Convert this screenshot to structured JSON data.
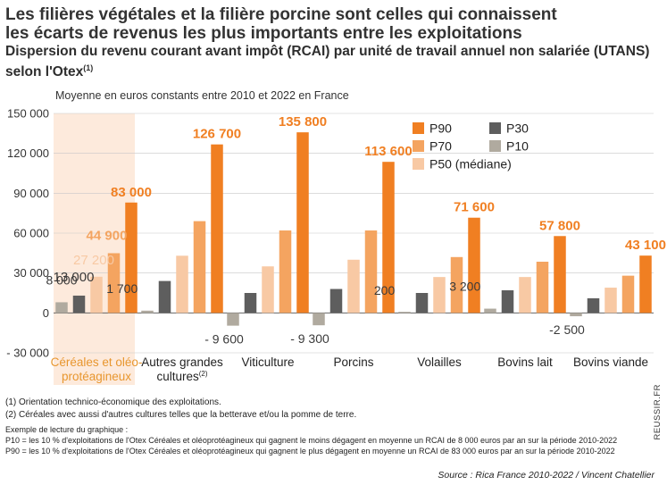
{
  "header": {
    "title_line1": "Les filières végétales et la filière porcine sont celles qui connaissent",
    "title_line2": "les écarts de revenus les plus importants entre les exploitations",
    "subtitle_main": "Dispersion du revenu courant avant impôt (RCAI) par unité de travail annuel non salariée (UTANS) selon l'Otex",
    "subtitle_sup": "(1)"
  },
  "chart_data": {
    "type": "bar",
    "title": "Dispersion du revenu courant avant impôt (RCAI) par unité de travail annuel non salariée (UTANS) selon l'Otex",
    "ylabel": "Moyenne en euros constants entre 2010 et 2022 en France",
    "ylim": [
      -30000,
      150000
    ],
    "yticks": [
      -30000,
      0,
      30000,
      60000,
      90000,
      120000,
      150000
    ],
    "ytick_labels": [
      "- 30 000",
      "0",
      "30 000",
      "60 000",
      "90 000",
      "120 000",
      "150 000"
    ],
    "categories": [
      {
        "line1": "Céréales et oléo-",
        "line2": "protéagineux",
        "sup": ""
      },
      {
        "line1": "Autres grandes",
        "line2": "cultures",
        "sup": "(2)"
      },
      {
        "line1": "Viticulture",
        "line2": "",
        "sup": ""
      },
      {
        "line1": "Porcins",
        "line2": "",
        "sup": ""
      },
      {
        "line1": "Volailles",
        "line2": "",
        "sup": ""
      },
      {
        "line1": "Bovins lait",
        "line2": "",
        "sup": ""
      },
      {
        "line1": "Bovins viande",
        "line2": "",
        "sup": ""
      }
    ],
    "highlight_category": 0,
    "series": [
      {
        "name": "P10",
        "values": [
          8000,
          1700,
          -9600,
          -9300,
          200,
          3200,
          -2500
        ]
      },
      {
        "name": "P30",
        "values": [
          13000,
          24000,
          15000,
          18000,
          15000,
          17000,
          11000
        ]
      },
      {
        "name": "P50 (médiane)",
        "values": [
          27200,
          43000,
          35000,
          40000,
          27000,
          27000,
          19000
        ]
      },
      {
        "name": "P70",
        "values": [
          44900,
          69000,
          62000,
          62000,
          42000,
          38500,
          28000
        ]
      },
      {
        "name": "P90",
        "values": [
          83000,
          126700,
          135800,
          113600,
          71600,
          57800,
          43100
        ]
      }
    ],
    "data_labels": [
      {
        "category": 0,
        "series": "P10",
        "text": "8 000"
      },
      {
        "category": 0,
        "series": "P30",
        "text": "13 000"
      },
      {
        "category": 0,
        "series": "P50 (médiane)",
        "text": "27 200"
      },
      {
        "category": 0,
        "series": "P70",
        "text": "44 900"
      },
      {
        "category": 0,
        "series": "P90",
        "text": "83 000"
      },
      {
        "category": 1,
        "series": "P10",
        "text": "1 700"
      },
      {
        "category": 1,
        "series": "P90",
        "text": "126 700"
      },
      {
        "category": 2,
        "series": "P10",
        "text": "- 9 600"
      },
      {
        "category": 2,
        "series": "P90",
        "text": "135 800"
      },
      {
        "category": 3,
        "series": "P10",
        "text": "- 9 300"
      },
      {
        "category": 3,
        "series": "P90",
        "text": "113 600"
      },
      {
        "category": 4,
        "series": "P10",
        "text": "200"
      },
      {
        "category": 4,
        "series": "P90",
        "text": "71 600"
      },
      {
        "category": 5,
        "series": "P10",
        "text": "3 200"
      },
      {
        "category": 5,
        "series": "P90",
        "text": "57 800"
      },
      {
        "category": 6,
        "series": "P10",
        "text": "-2 500"
      },
      {
        "category": 6,
        "series": "P90",
        "text": "43 100"
      }
    ],
    "legend_order": [
      "P90",
      "P30",
      "P70",
      "P10",
      "P50 (médiane)"
    ],
    "legend_position": "top-right",
    "colors": {
      "P10": "#b0aa9f",
      "P30": "#5e5e5e",
      "P50 (médiane)": "#f8c9a4",
      "P70": "#f4a460",
      "P90": "#f07f22",
      "highlight_bg": "#fdeadc",
      "highlight_text": "#e8962e",
      "label_light": "#f8c9a4",
      "label_dark": "#3a3a3a"
    }
  },
  "footnotes": {
    "note1": "(1) Orientation technico-économique des exploitations.",
    "note2": "(2) Céréales avec aussi d'autres cultures telles que la betterave et/ou la pomme de terre.",
    "example_title": "Exemple de lecture du graphique :",
    "example_p10": "P10 = les 10 % d'exploitations de l'Otex Céréales et oléoprotéagineux qui gagnent le moins dégagent en moyenne un RCAI de 8 000 euros par an sur la période 2010-2022",
    "example_p90": "P90 = les 10 % d'exploitations de l'Otex Céréales et oléoprotéagineux  qui gagnent le plus dégagent en moyenne un RCAI de 83 000 euros par an sur la période 2010-2022"
  },
  "source": "Source : Rica France 2010-2022 / Vincent Chatellier",
  "watermark": "REUSSIR.FR"
}
